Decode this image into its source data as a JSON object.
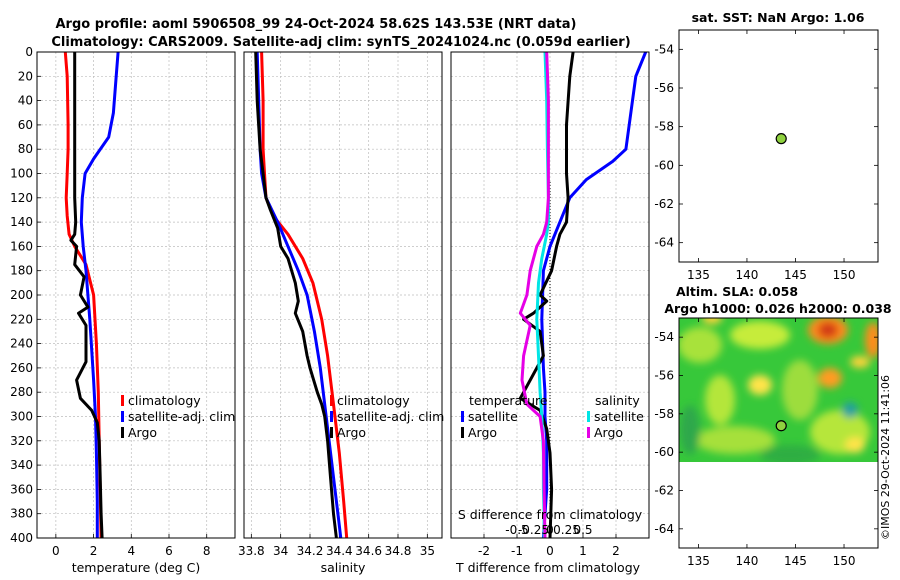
{
  "header": {
    "line1": "Argo profile: aoml 5906508_99 24-Oct-2024 58.62S 143.53E (NRT data)",
    "line2": "Climatology: CARS2009. Satellite-adj clim: synTS_20241024.nc (0.059d earlier)"
  },
  "stamp": "©IMOS 29-Oct-2024 11:41:06",
  "colors": {
    "climatology": "#ff0000",
    "satellite": "#0000ff",
    "argo": "#000000",
    "cyan": "#00e5e5",
    "magenta": "#e600e6",
    "marker": "#8fd13f"
  },
  "chart_data": [
    {
      "type": "line",
      "title": "",
      "xlabel": "temperature (deg C)",
      "ylabel": "",
      "xlim": [
        -1,
        9.5
      ],
      "ylim": [
        400,
        0
      ],
      "xticks": [
        0,
        2,
        4,
        6,
        8
      ],
      "xtick_labels": [
        "0",
        "2",
        "4",
        "6",
        "8"
      ],
      "yticks": [
        0,
        20,
        40,
        60,
        80,
        100,
        120,
        140,
        160,
        180,
        200,
        220,
        240,
        260,
        280,
        300,
        320,
        340,
        360,
        380,
        400
      ],
      "ytick_labels": [
        "0",
        "20",
        "40",
        "60",
        "80",
        "100",
        "120",
        "140",
        "160",
        "180",
        "200",
        "220",
        "240",
        "260",
        "280",
        "300",
        "320",
        "340",
        "360",
        "380",
        "400"
      ],
      "legend_position": "lower-right",
      "legend": [
        "climatology",
        "satellite-adj. clim",
        "Argo"
      ],
      "series": [
        {
          "name": "climatology",
          "color": "#ff0000",
          "x": [
            0.5,
            0.6,
            0.65,
            0.65,
            0.6,
            0.55,
            0.6,
            0.7,
            1.0,
            1.6,
            2.0,
            2.15,
            2.25,
            2.3,
            2.35,
            2.4
          ],
          "y": [
            0,
            20,
            60,
            80,
            100,
            120,
            135,
            150,
            160,
            175,
            200,
            240,
            280,
            320,
            360,
            400
          ]
        },
        {
          "name": "satellite-adj. clim",
          "color": "#0000ff",
          "x": [
            3.3,
            3.2,
            3.05,
            2.8,
            2.0,
            1.55,
            1.4,
            1.35,
            1.45,
            1.6,
            1.8,
            2.0,
            2.1,
            2.15,
            2.2,
            2.2
          ],
          "y": [
            0,
            20,
            50,
            70,
            88,
            100,
            120,
            140,
            160,
            180,
            220,
            270,
            300,
            330,
            370,
            400
          ]
        },
        {
          "name": "Argo",
          "color": "#000000",
          "x": [
            1.0,
            1.0,
            1.0,
            1.0,
            1.05,
            1.0,
            0.8,
            1.1,
            1.0,
            1.5,
            1.3,
            1.7,
            1.2,
            1.6,
            1.6,
            1.1,
            1.3,
            1.9,
            2.2,
            2.3,
            2.35,
            2.4,
            2.45
          ],
          "y": [
            0,
            40,
            80,
            120,
            140,
            150,
            155,
            160,
            175,
            185,
            200,
            210,
            215,
            225,
            255,
            270,
            285,
            295,
            305,
            320,
            350,
            380,
            400
          ]
        }
      ]
    },
    {
      "type": "line",
      "title": "",
      "xlabel": "salinity",
      "ylabel": "",
      "xlim": [
        33.75,
        35.1
      ],
      "ylim": [
        400,
        0
      ],
      "xticks": [
        33.8,
        34,
        34.2,
        34.4,
        34.6,
        34.8,
        35
      ],
      "xtick_labels": [
        "33.8",
        "34",
        "34.2",
        "34.4",
        "34.6",
        "34.8",
        "35"
      ],
      "legend_position": "lower-right",
      "legend": [
        "climatology",
        "satellite-adj. clim",
        "Argo"
      ],
      "series": [
        {
          "name": "climatology",
          "color": "#ff0000",
          "x": [
            33.87,
            33.88,
            33.88,
            33.89,
            33.9,
            33.95,
            34.05,
            34.15,
            34.22,
            34.28,
            34.32,
            34.36,
            34.4,
            34.43,
            34.45
          ],
          "y": [
            0,
            40,
            80,
            100,
            120,
            135,
            150,
            170,
            190,
            220,
            250,
            290,
            330,
            370,
            400
          ]
        },
        {
          "name": "satellite-adj. clim",
          "color": "#0000ff",
          "x": [
            33.84,
            33.85,
            33.86,
            33.87,
            33.9,
            33.98,
            34.05,
            34.12,
            34.18,
            34.23,
            34.27,
            34.3,
            34.33,
            34.36,
            34.39,
            34.41
          ],
          "y": [
            0,
            40,
            80,
            100,
            120,
            140,
            160,
            180,
            200,
            230,
            260,
            290,
            320,
            350,
            380,
            400
          ]
        },
        {
          "name": "Argo",
          "color": "#000000",
          "x": [
            33.83,
            33.84,
            33.86,
            33.88,
            33.9,
            33.93,
            33.98,
            34.0,
            34.05,
            34.1,
            34.12,
            34.1,
            34.15,
            34.18,
            34.2,
            34.25,
            34.28,
            34.3,
            34.32,
            34.34,
            34.36,
            34.38
          ],
          "y": [
            0,
            40,
            80,
            100,
            120,
            130,
            145,
            160,
            170,
            190,
            205,
            215,
            230,
            250,
            260,
            280,
            290,
            300,
            320,
            350,
            380,
            400
          ]
        }
      ]
    },
    {
      "type": "line",
      "title": "",
      "xlabel": "T difference from climatology",
      "xlabel_top": "S difference from climatology",
      "xlim": [
        -3,
        3
      ],
      "ylim": [
        400,
        0
      ],
      "xticks": [
        -2,
        -1,
        0,
        1,
        2
      ],
      "xtick_labels": [
        "-2",
        "-1",
        "0",
        "1",
        "2"
      ],
      "xticks_top": [
        -1,
        -0.5,
        0,
        0.5,
        1
      ],
      "xtick_labels_top": [
        "-0.5",
        "-0.25",
        "0",
        "0.25",
        "0.5"
      ],
      "zero_line": true,
      "legend_position": "lower",
      "legend_temperature_title": "temperature",
      "legend_salinity_title": "salinity",
      "legend_temperature": [
        "satellite",
        "Argo"
      ],
      "legend_salinity": [
        "satellite",
        "Argo"
      ],
      "series": [
        {
          "name": "temperature satellite",
          "color": "#0000ff",
          "x": [
            2.9,
            2.6,
            2.5,
            2.4,
            2.3,
            1.9,
            1.1,
            0.6,
            0.3,
            0.0,
            -0.2,
            -0.25,
            -0.2,
            -0.15,
            -0.15,
            -0.1,
            -0.1,
            -0.1,
            -0.15,
            -0.2
          ],
          "y": [
            0,
            20,
            40,
            60,
            80,
            90,
            105,
            120,
            140,
            160,
            180,
            220,
            260,
            280,
            300,
            320,
            340,
            360,
            380,
            400
          ]
        },
        {
          "name": "temperature Argo",
          "color": "#000000",
          "x": [
            0.7,
            0.6,
            0.5,
            0.5,
            0.55,
            0.5,
            0.3,
            0.2,
            0.05,
            -0.3,
            -0.1,
            -0.5,
            -0.8,
            -0.3,
            -0.2,
            -0.6,
            -0.9,
            -0.3,
            -0.1,
            0.0,
            0.05,
            0.0
          ],
          "y": [
            0,
            20,
            60,
            100,
            120,
            140,
            150,
            160,
            180,
            200,
            205,
            215,
            220,
            230,
            250,
            270,
            285,
            295,
            310,
            330,
            360,
            400
          ]
        },
        {
          "name": "salinity satellite",
          "color": "#00e5e5",
          "x": [
            -0.15,
            -0.1,
            -0.08,
            -0.05,
            -0.05,
            -0.1,
            -0.25,
            -0.35,
            -0.4,
            -0.35,
            -0.3,
            -0.25,
            -0.2,
            -0.2,
            -0.18,
            -0.18
          ],
          "y": [
            0,
            40,
            80,
            120,
            140,
            150,
            170,
            190,
            220,
            250,
            280,
            300,
            330,
            360,
            380,
            400
          ]
        },
        {
          "name": "salinity Argo",
          "color": "#e600e6",
          "x": [
            -0.1,
            -0.05,
            -0.05,
            -0.05,
            -0.1,
            -0.2,
            -0.4,
            -0.6,
            -0.7,
            -0.9,
            -0.6,
            -0.8,
            -0.85,
            -0.7,
            -0.3,
            -0.2,
            -0.18,
            -0.15
          ],
          "y": [
            0,
            40,
            80,
            120,
            140,
            150,
            160,
            180,
            200,
            215,
            225,
            250,
            270,
            290,
            300,
            320,
            360,
            400
          ]
        }
      ]
    },
    {
      "type": "scatter",
      "title": "sat. SST: NaN Argo: 1.06",
      "xlim": [
        133,
        153.5
      ],
      "ylim": [
        -65,
        -53
      ],
      "xticks": [
        135,
        140,
        145,
        150
      ],
      "xtick_labels": [
        "135",
        "140",
        "145",
        "150"
      ],
      "yticks": [
        -54,
        -56,
        -58,
        -60,
        -62,
        -64
      ],
      "ytick_labels": [
        "-54",
        "-56",
        "-58",
        "-60",
        "-62",
        "-64"
      ],
      "points": [
        {
          "x": 143.53,
          "y": -58.62
        }
      ]
    },
    {
      "type": "heatmap",
      "title": "Altim. SLA: 0.058",
      "subtitle": "Argo h1000: 0.026 h2000: 0.038",
      "xlim": [
        133,
        153.5
      ],
      "ylim": [
        -65,
        -53
      ],
      "data_lat_range": [
        -60,
        -53
      ],
      "xticks": [
        135,
        140,
        145,
        150
      ],
      "xtick_labels": [
        "135",
        "140",
        "145",
        "150"
      ],
      "yticks": [
        -54,
        -56,
        -58,
        -60,
        -62,
        -64
      ],
      "ytick_labels": [
        "-54",
        "-56",
        "-58",
        "-60",
        "-62",
        "-64"
      ],
      "points": [
        {
          "x": 143.53,
          "y": -58.62
        }
      ]
    }
  ]
}
